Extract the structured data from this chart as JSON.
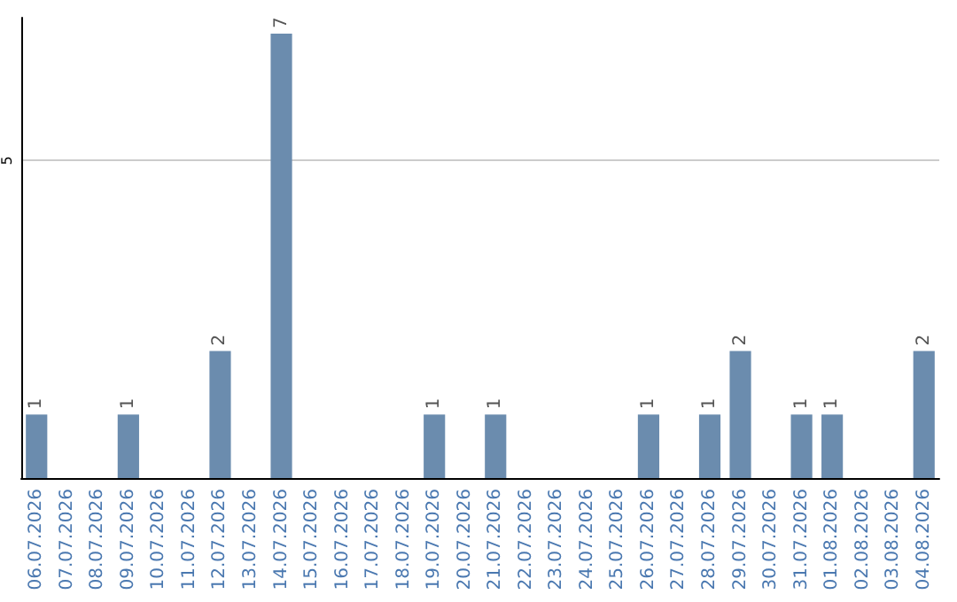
{
  "chart_data": {
    "type": "bar",
    "categories": [
      "06.07.2026",
      "07.07.2026",
      "08.07.2026",
      "09.07.2026",
      "10.07.2026",
      "11.07.2026",
      "12.07.2026",
      "13.07.2026",
      "14.07.2026",
      "15.07.2026",
      "16.07.2026",
      "17.07.2026",
      "18.07.2026",
      "19.07.2026",
      "20.07.2026",
      "21.07.2026",
      "22.07.2026",
      "23.07.2026",
      "24.07.2026",
      "25.07.2026",
      "26.07.2026",
      "27.07.2026",
      "28.07.2026",
      "29.07.2026",
      "30.07.2026",
      "31.07.2026",
      "01.08.2026",
      "02.08.2026",
      "03.08.2026",
      "04.08.2026"
    ],
    "values": [
      1,
      0,
      0,
      1,
      0,
      0,
      2,
      0,
      7,
      0,
      0,
      0,
      0,
      1,
      0,
      1,
      0,
      0,
      0,
      0,
      1,
      0,
      1,
      2,
      0,
      1,
      1,
      0,
      0,
      2
    ],
    "color": "#6b8cae",
    "value_labels": [
      "1",
      null,
      null,
      "1",
      null,
      null,
      "2",
      null,
      "7",
      null,
      null,
      null,
      null,
      "1",
      null,
      "1",
      null,
      null,
      null,
      null,
      "1",
      null,
      "1",
      "2",
      null,
      "1",
      "1",
      null,
      null,
      "2"
    ],
    "ylim": [
      0,
      7.25
    ],
    "yticks": [
      5
    ],
    "grid": "y"
  }
}
